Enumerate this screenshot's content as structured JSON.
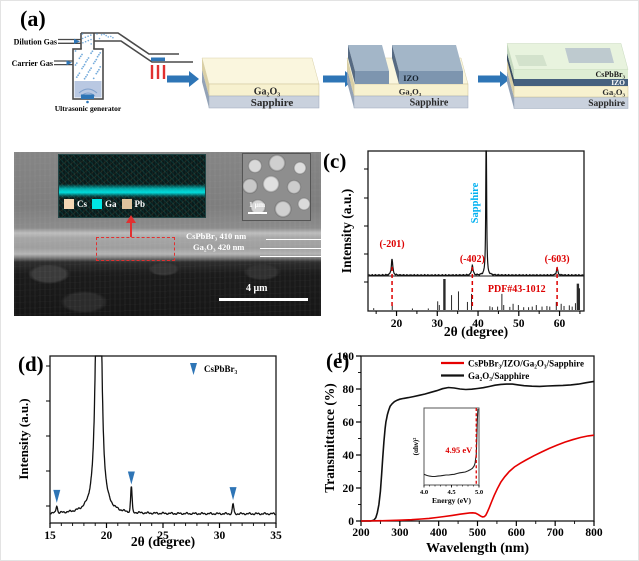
{
  "panel_labels": {
    "a": "(a)",
    "b": "(b)",
    "c": "(c)",
    "d": "(d)",
    "e": "(e)"
  },
  "panel_a": {
    "labels": {
      "dilution_gas": "Dilution Gas",
      "carrier_gas": "Carrier Gas",
      "ultrasonic_generator": "Ultrasonic generator"
    },
    "stack1": [
      "Ga₂O₃",
      "Sapphire"
    ],
    "stack2": [
      "IZO",
      "Ga₂O₃",
      "Sapphire"
    ],
    "stack3": [
      "CsPbBr₃",
      "IZO",
      "Ga₂O₃",
      "Sapphire"
    ],
    "colors": {
      "arrow_blue": "#2e75b6",
      "heater_red": "#e03030",
      "ga2o3": "#f7f1cf",
      "sapphire": "#c9d1dd",
      "izo": "#7d95af",
      "cspbbr3": "#dcedd2"
    }
  },
  "panel_b": {
    "eds_legend": [
      {
        "element": "Cs",
        "color": "#f2d7b4"
      },
      {
        "element": "Ga",
        "color": "#00e5e5"
      },
      {
        "element": "Pb",
        "color": "#dec49d"
      }
    ],
    "grain_scalebar": "1 μm",
    "annotations": {
      "cspbbr3": "CsPbBr₃ 410 nm",
      "ga2o3": "Ga₂O₃ 420 nm"
    },
    "scalebar": "4 μm"
  },
  "chart_data": [
    {
      "panel": "c",
      "type": "line",
      "subtype": "xrd",
      "xlabel": "2θ (degree)",
      "ylabel": "Intensity (a.u.)",
      "xlim": [
        13,
        66
      ],
      "xticks": [
        20,
        30,
        40,
        50,
        60
      ],
      "measured_peaks": [
        {
          "two_theta": 18.9,
          "rel_intensity": 0.13,
          "label": "(-201)"
        },
        {
          "two_theta": 38.6,
          "rel_intensity": 0.08,
          "label": "(-402)"
        },
        {
          "two_theta": 42.0,
          "rel_intensity": 1.0,
          "label": "Sapphire"
        },
        {
          "two_theta": 59.4,
          "rel_intensity": 0.06,
          "label": "(-603)"
        }
      ],
      "peak_label_color": "#dd0000",
      "sapphire_label_color": "#00b0f0",
      "dashed_guides": [
        18.9,
        38.6,
        59.4
      ],
      "reference": {
        "label": "PDF#43-1012",
        "color": "#dd0000",
        "sticks": [
          [
            14.4,
            0.06
          ],
          [
            18.95,
            0.14
          ],
          [
            23.9,
            0.05
          ],
          [
            27.8,
            0.05
          ],
          [
            30.1,
            0.28
          ],
          [
            30.5,
            0.16
          ],
          [
            31.75,
            1.0
          ],
          [
            33.5,
            0.48
          ],
          [
            35.2,
            0.6
          ],
          [
            37.4,
            0.26
          ],
          [
            38.4,
            0.52
          ],
          [
            42.9,
            0.12
          ],
          [
            43.5,
            0.09
          ],
          [
            44.8,
            0.11
          ],
          [
            45.85,
            0.52
          ],
          [
            46.3,
            0.16
          ],
          [
            47.8,
            0.1
          ],
          [
            48.6,
            0.2
          ],
          [
            49.9,
            0.16
          ],
          [
            51.2,
            0.09
          ],
          [
            52.4,
            0.09
          ],
          [
            53.3,
            0.11
          ],
          [
            54.3,
            0.16
          ],
          [
            55.7,
            0.11
          ],
          [
            56.9,
            0.13
          ],
          [
            57.6,
            0.11
          ],
          [
            59.2,
            0.26
          ],
          [
            60.4,
            0.2
          ],
          [
            61.1,
            0.13
          ],
          [
            62.4,
            0.15
          ],
          [
            63.1,
            0.11
          ],
          [
            63.9,
            0.22
          ],
          [
            64.5,
            0.85
          ],
          [
            64.9,
            0.7
          ]
        ]
      }
    },
    {
      "panel": "d",
      "type": "line",
      "subtype": "xrd",
      "xlabel": "2θ (degree)",
      "ylabel": "Intensity (a.u.)",
      "xlim": [
        15,
        35
      ],
      "xticks": [
        15,
        20,
        25,
        30,
        35
      ],
      "peaks": [
        {
          "two_theta": 15.6,
          "rel_intensity": 0.045
        },
        {
          "two_theta": 19.3,
          "rel_intensity": 1.0,
          "clipped": true
        },
        {
          "two_theta": 22.2,
          "rel_intensity": 0.16
        },
        {
          "two_theta": 31.2,
          "rel_intensity": 0.062
        }
      ],
      "markers": {
        "symbol": "down-triangle",
        "color": "#2e75b6",
        "positions": [
          15.6,
          22.2,
          31.2
        ],
        "legend": "CsPbBr₃"
      }
    },
    {
      "panel": "e",
      "type": "line",
      "xlabel": "Wavelength (nm)",
      "ylabel": "Transmittance (%)",
      "xlim": [
        200,
        800
      ],
      "ylim": [
        0,
        100
      ],
      "xticks": [
        200,
        300,
        400,
        500,
        600,
        700,
        800
      ],
      "yticks": [
        0,
        20,
        40,
        60,
        80,
        100
      ],
      "series": [
        {
          "name": "CsPbBr₃/IZO/Ga₂O₃/Sapphire",
          "color": "#e60000",
          "x": [
            200,
            260,
            300,
            330,
            355,
            375,
            395,
            415,
            435,
            455,
            470,
            480,
            488,
            495,
            502,
            508,
            513,
            517,
            521,
            525,
            530,
            536,
            543,
            551,
            560,
            570,
            582,
            595,
            610,
            625,
            645,
            665,
            685,
            705,
            725,
            745,
            765,
            785,
            800
          ],
          "y": [
            0,
            0.2,
            0.5,
            0.8,
            1.2,
            1.6,
            2.1,
            2.7,
            3.4,
            4.1,
            4.6,
            4.9,
            5.0,
            4.7,
            3.9,
            3.0,
            2.5,
            2.6,
            3.4,
            5.2,
            8,
            11.5,
            15.5,
            19.5,
            23.5,
            26.8,
            30,
            32.7,
            35,
            37,
            39.5,
            41.8,
            44,
            46,
            47.8,
            49.3,
            50.6,
            51.6,
            52
          ]
        },
        {
          "name": "Ga₂O₃/Sapphire",
          "color": "#111111",
          "x": [
            200,
            225,
            233,
            238,
            242,
            246,
            250,
            253,
            256,
            259,
            262,
            264,
            266,
            268,
            271,
            275,
            280,
            286,
            293,
            300,
            310,
            322,
            335,
            350,
            365,
            380,
            395,
            410,
            425,
            440,
            455,
            470,
            485,
            500,
            515,
            530,
            545,
            560,
            575,
            590,
            605,
            620,
            640,
            660,
            680,
            700,
            720,
            740,
            760,
            780,
            800
          ],
          "y": [
            0,
            0,
            0.5,
            2,
            5,
            10,
            18,
            28,
            38,
            48,
            56,
            60,
            62,
            64.5,
            67,
            69.5,
            71,
            72.3,
            73.2,
            73.8,
            74.3,
            74.8,
            75.4,
            76.2,
            77,
            78,
            79,
            80.2,
            80.9,
            80.6,
            80,
            79.7,
            79.9,
            80.3,
            80.8,
            81.5,
            82.3,
            82.8,
            83,
            83,
            82.5,
            82,
            81.7,
            81.6,
            81.8,
            82,
            82.2,
            82.5,
            83,
            83.8,
            84.6
          ]
        }
      ],
      "inset": {
        "xlabel": "Energy (eV)",
        "ylabel": "(αhν)²",
        "xlim": [
          4.0,
          5.0
        ],
        "xticks": [
          "4.0",
          "4.5",
          "5.0"
        ],
        "bandgap_annotation": "4.95 eV",
        "annotation_color": "#dd0000",
        "guide_x": 4.95,
        "x": [
          4.0,
          4.05,
          4.1,
          4.15,
          4.2,
          4.25,
          4.3,
          4.35,
          4.4,
          4.45,
          4.5,
          4.55,
          4.6,
          4.65,
          4.7,
          4.75,
          4.8,
          4.84,
          4.88,
          4.91,
          4.93,
          4.95,
          4.96,
          4.97,
          4.98
        ],
        "y_rel": [
          0.13,
          0.115,
          0.105,
          0.1,
          0.1,
          0.105,
          0.11,
          0.115,
          0.12,
          0.12,
          0.125,
          0.13,
          0.14,
          0.15,
          0.155,
          0.16,
          0.175,
          0.19,
          0.21,
          0.24,
          0.28,
          0.4,
          0.6,
          0.85,
          1.0
        ]
      }
    }
  ]
}
